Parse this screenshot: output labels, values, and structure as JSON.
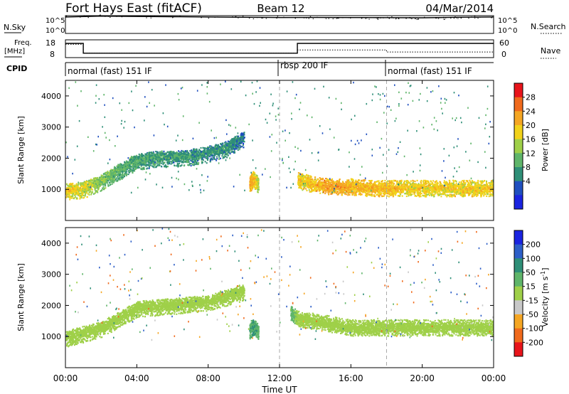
{
  "header": {
    "title": "Fort Hays East (fitACF)",
    "beam": "Beam 12",
    "date": "04/Mar/2014"
  },
  "noise_panel": {
    "left_label": "N.Sky",
    "left_ticks": [
      "10^5",
      "10^0"
    ],
    "right_label": "N.Search",
    "right_ticks": [
      "10^5",
      "10^0"
    ]
  },
  "freq_panel": {
    "left_label_1": "Freq.",
    "left_label_2": "[MHz]",
    "left_ticks": [
      "18",
      "8"
    ],
    "right_label": "Nave",
    "right_ticks": [
      "60",
      "0"
    ]
  },
  "cpid": {
    "label": "CPID",
    "segments": [
      {
        "text": "normal (fast) 151 IF",
        "start_hour": 0
      },
      {
        "text": "rbsp 200 IF",
        "start_hour": 12
      },
      {
        "text": "normal (fast) 151 IF",
        "start_hour": 18
      }
    ]
  },
  "power_colorbar": {
    "label": "Power [dB]",
    "ticks": [
      "28",
      "24",
      "20",
      "16",
      "12",
      "8",
      "4"
    ],
    "colors": [
      "#e8141b",
      "#f06a1c",
      "#f5a623",
      "#f2d21a",
      "#9fd049",
      "#5fb56a",
      "#2f8f78",
      "#1f4fbf",
      "#1a24e0"
    ]
  },
  "velocity_colorbar": {
    "label": "Velocity [m s",
    "label_exp": "-1",
    "label_end": "]",
    "ticks": [
      "200",
      "100",
      "50",
      "15",
      "-15",
      "-50",
      "-100",
      "-200"
    ],
    "colors": [
      "#1a24e0",
      "#2d5fc8",
      "#2f8f78",
      "#5fb56a",
      "#9fd049",
      "#c8c8c8",
      "#f5a623",
      "#f06a1c",
      "#e8141b"
    ]
  },
  "axes": {
    "ylabel": "Slant Range [km]",
    "xlabel": "Time UT",
    "xticks": [
      "00:00",
      "04:00",
      "08:00",
      "12:00",
      "16:00",
      "20:00",
      "00:00"
    ],
    "yticks": [
      "1000",
      "2000",
      "3000",
      "4000"
    ]
  },
  "chart_data": [
    {
      "type": "line",
      "title": "",
      "series": [
        {
          "name": "N.Sky",
          "x": [
            0,
            2,
            4,
            6,
            8,
            10,
            12,
            14,
            16,
            18,
            20,
            22,
            24
          ],
          "y": [
            200000,
            400000,
            300000,
            250000,
            200000,
            150000,
            120000,
            130000,
            120000,
            110000,
            100000,
            150000,
            200000
          ]
        }
      ],
      "xlim": [
        0,
        24
      ],
      "yscale": "log"
    },
    {
      "type": "line",
      "title": "",
      "series": [
        {
          "name": "Freq.",
          "x": [
            0,
            1,
            1,
            13,
            13,
            24
          ],
          "y": [
            16,
            16,
            10.5,
            10.5,
            16,
            16
          ]
        },
        {
          "name": "Nave",
          "x": [
            0,
            1,
            1,
            13,
            13,
            18,
            18,
            24
          ],
          "y": [
            45,
            45,
            15,
            15,
            26,
            26,
            19,
            19
          ]
        }
      ],
      "xlim": [
        0,
        24
      ]
    },
    {
      "type": "heatmap",
      "title": "",
      "quantity": "Power [dB]",
      "xlabel": "Time UT",
      "ylabel": "Slant Range [km]",
      "xlim": [
        0,
        24
      ],
      "ylim": [
        0,
        4500
      ],
      "clim": [
        0,
        32
      ],
      "bands": [
        {
          "x": [
            0,
            1,
            2,
            3,
            4,
            5,
            6,
            7,
            8,
            9,
            10
          ],
          "range_km": [
            1000,
            1050,
            1300,
            1650,
            1950,
            2050,
            2050,
            2100,
            2200,
            2350,
            2700
          ],
          "power_db": [
            24,
            22,
            18,
            15,
            14,
            13,
            13,
            13,
            12,
            12,
            10
          ]
        },
        {
          "x": [
            10.3,
            10.5,
            10.8
          ],
          "range_km": [
            1200,
            1400,
            1200
          ],
          "power_db": [
            28,
            26,
            20
          ]
        },
        {
          "x": [
            13,
            14,
            15,
            16,
            17,
            18,
            19,
            20,
            21,
            22,
            23,
            24
          ],
          "range_km": [
            1300,
            1150,
            1100,
            1100,
            1050,
            1050,
            1050,
            1050,
            1050,
            1050,
            1050,
            1050
          ],
          "power_db": [
            24,
            26,
            28,
            26,
            26,
            26,
            24,
            24,
            24,
            24,
            24,
            24
          ]
        }
      ]
    },
    {
      "type": "heatmap",
      "title": "",
      "quantity": "Velocity [m s-1]",
      "xlabel": "Time UT",
      "ylabel": "Slant Range [km]",
      "xlim": [
        0,
        24
      ],
      "ylim": [
        0,
        4500
      ],
      "clim": [
        -250,
        250
      ],
      "bands": [
        {
          "x": [
            0,
            2,
            4,
            6,
            8,
            10
          ],
          "range_km": [
            1000,
            1300,
            1950,
            2050,
            2150,
            2500
          ],
          "velocity": [
            0,
            0,
            0,
            0,
            0,
            0
          ]
        },
        {
          "x": [
            10.3,
            10.5,
            10.8
          ],
          "range_km": [
            1200,
            1400,
            1200
          ],
          "velocity": [
            40,
            60,
            40
          ]
        },
        {
          "x": [
            12.6,
            13,
            16,
            20,
            24
          ],
          "range_km": [
            1800,
            1600,
            1300,
            1300,
            1300
          ],
          "velocity": [
            40,
            0,
            0,
            0,
            0
          ]
        }
      ]
    }
  ]
}
